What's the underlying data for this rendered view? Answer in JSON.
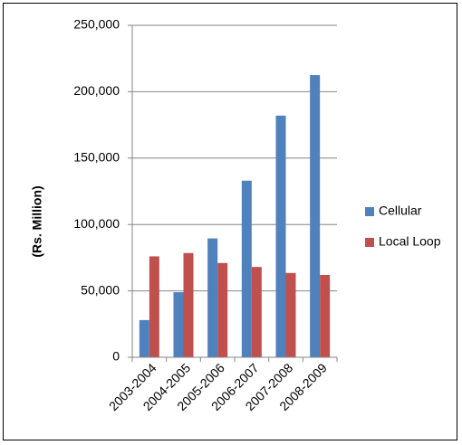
{
  "chart_data": {
    "type": "bar",
    "title": "",
    "xlabel": "",
    "ylabel": "(Rs. Million)",
    "categories": [
      "2003-2004",
      "2004-2005",
      "2005-2006",
      "2006-2007",
      "2007-2008",
      "2008-2009"
    ],
    "series": [
      {
        "name": "Cellular",
        "color": "#4f81bd",
        "values": [
          28000,
          49000,
          89500,
          133000,
          182000,
          212500
        ]
      },
      {
        "name": "Local Loop",
        "color": "#c0504d",
        "values": [
          76000,
          78500,
          71000,
          68000,
          63500,
          62000
        ]
      }
    ],
    "ylim": [
      0,
      250000
    ],
    "yticks": [
      0,
      50000,
      100000,
      150000,
      200000,
      250000
    ],
    "ytick_labels": [
      "0",
      "50,000",
      "100,000",
      "150,000",
      "200,000",
      "250,000"
    ],
    "grid": true,
    "legend_position": "right"
  }
}
